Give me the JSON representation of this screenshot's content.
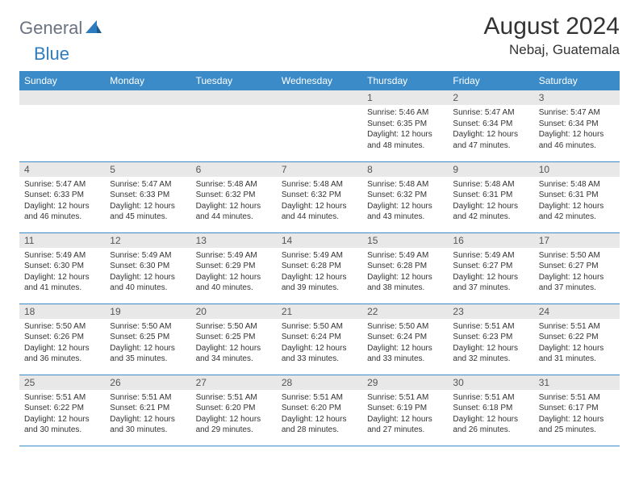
{
  "brand": {
    "first": "General",
    "second": "Blue"
  },
  "title": "August 2024",
  "location": "Nebaj, Guatemala",
  "colors": {
    "header_bg": "#3b8bc8",
    "header_text": "#ffffff",
    "daynum_bg": "#e8e8e8",
    "border": "#3b8bc8",
    "logo_gray": "#6b7280",
    "logo_blue": "#2e7cc0"
  },
  "weekdays": [
    "Sunday",
    "Monday",
    "Tuesday",
    "Wednesday",
    "Thursday",
    "Friday",
    "Saturday"
  ],
  "weeks": [
    [
      null,
      null,
      null,
      null,
      {
        "n": "1",
        "sr": "5:46 AM",
        "ss": "6:35 PM",
        "dl": "12 hours and 48 minutes."
      },
      {
        "n": "2",
        "sr": "5:47 AM",
        "ss": "6:34 PM",
        "dl": "12 hours and 47 minutes."
      },
      {
        "n": "3",
        "sr": "5:47 AM",
        "ss": "6:34 PM",
        "dl": "12 hours and 46 minutes."
      }
    ],
    [
      {
        "n": "4",
        "sr": "5:47 AM",
        "ss": "6:33 PM",
        "dl": "12 hours and 46 minutes."
      },
      {
        "n": "5",
        "sr": "5:47 AM",
        "ss": "6:33 PM",
        "dl": "12 hours and 45 minutes."
      },
      {
        "n": "6",
        "sr": "5:48 AM",
        "ss": "6:32 PM",
        "dl": "12 hours and 44 minutes."
      },
      {
        "n": "7",
        "sr": "5:48 AM",
        "ss": "6:32 PM",
        "dl": "12 hours and 44 minutes."
      },
      {
        "n": "8",
        "sr": "5:48 AM",
        "ss": "6:32 PM",
        "dl": "12 hours and 43 minutes."
      },
      {
        "n": "9",
        "sr": "5:48 AM",
        "ss": "6:31 PM",
        "dl": "12 hours and 42 minutes."
      },
      {
        "n": "10",
        "sr": "5:48 AM",
        "ss": "6:31 PM",
        "dl": "12 hours and 42 minutes."
      }
    ],
    [
      {
        "n": "11",
        "sr": "5:49 AM",
        "ss": "6:30 PM",
        "dl": "12 hours and 41 minutes."
      },
      {
        "n": "12",
        "sr": "5:49 AM",
        "ss": "6:30 PM",
        "dl": "12 hours and 40 minutes."
      },
      {
        "n": "13",
        "sr": "5:49 AM",
        "ss": "6:29 PM",
        "dl": "12 hours and 40 minutes."
      },
      {
        "n": "14",
        "sr": "5:49 AM",
        "ss": "6:28 PM",
        "dl": "12 hours and 39 minutes."
      },
      {
        "n": "15",
        "sr": "5:49 AM",
        "ss": "6:28 PM",
        "dl": "12 hours and 38 minutes."
      },
      {
        "n": "16",
        "sr": "5:49 AM",
        "ss": "6:27 PM",
        "dl": "12 hours and 37 minutes."
      },
      {
        "n": "17",
        "sr": "5:50 AM",
        "ss": "6:27 PM",
        "dl": "12 hours and 37 minutes."
      }
    ],
    [
      {
        "n": "18",
        "sr": "5:50 AM",
        "ss": "6:26 PM",
        "dl": "12 hours and 36 minutes."
      },
      {
        "n": "19",
        "sr": "5:50 AM",
        "ss": "6:25 PM",
        "dl": "12 hours and 35 minutes."
      },
      {
        "n": "20",
        "sr": "5:50 AM",
        "ss": "6:25 PM",
        "dl": "12 hours and 34 minutes."
      },
      {
        "n": "21",
        "sr": "5:50 AM",
        "ss": "6:24 PM",
        "dl": "12 hours and 33 minutes."
      },
      {
        "n": "22",
        "sr": "5:50 AM",
        "ss": "6:24 PM",
        "dl": "12 hours and 33 minutes."
      },
      {
        "n": "23",
        "sr": "5:51 AM",
        "ss": "6:23 PM",
        "dl": "12 hours and 32 minutes."
      },
      {
        "n": "24",
        "sr": "5:51 AM",
        "ss": "6:22 PM",
        "dl": "12 hours and 31 minutes."
      }
    ],
    [
      {
        "n": "25",
        "sr": "5:51 AM",
        "ss": "6:22 PM",
        "dl": "12 hours and 30 minutes."
      },
      {
        "n": "26",
        "sr": "5:51 AM",
        "ss": "6:21 PM",
        "dl": "12 hours and 30 minutes."
      },
      {
        "n": "27",
        "sr": "5:51 AM",
        "ss": "6:20 PM",
        "dl": "12 hours and 29 minutes."
      },
      {
        "n": "28",
        "sr": "5:51 AM",
        "ss": "6:20 PM",
        "dl": "12 hours and 28 minutes."
      },
      {
        "n": "29",
        "sr": "5:51 AM",
        "ss": "6:19 PM",
        "dl": "12 hours and 27 minutes."
      },
      {
        "n": "30",
        "sr": "5:51 AM",
        "ss": "6:18 PM",
        "dl": "12 hours and 26 minutes."
      },
      {
        "n": "31",
        "sr": "5:51 AM",
        "ss": "6:17 PM",
        "dl": "12 hours and 25 minutes."
      }
    ]
  ],
  "labels": {
    "sunrise": "Sunrise:",
    "sunset": "Sunset:",
    "daylight": "Daylight:"
  }
}
